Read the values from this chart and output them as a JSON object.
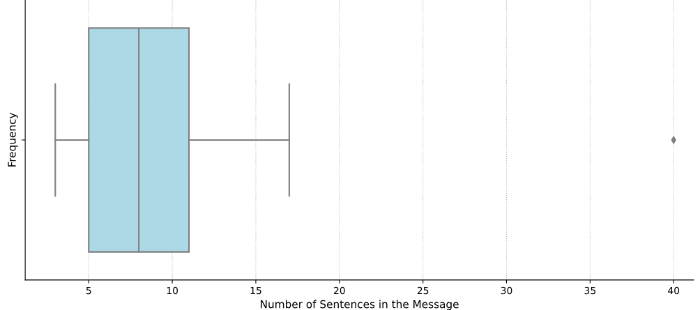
{
  "chart_data": {
    "type": "box",
    "orientation": "horizontal",
    "categories": [
      null
    ],
    "xlabel": "Number of Sentences in the Message",
    "ylabel": "Frequency",
    "boxes": [
      {
        "low": 3,
        "q1": 5,
        "median": 8,
        "q3": 11,
        "high": 17,
        "outliers": [
          40
        ]
      }
    ],
    "color": "#add8e6",
    "xlim": [
      1.2,
      41.2
    ],
    "xticks": [
      5,
      10,
      15,
      20,
      25,
      30,
      35,
      40
    ],
    "grid": "x",
    "tick_labels": "x",
    "marker": "diamond"
  }
}
